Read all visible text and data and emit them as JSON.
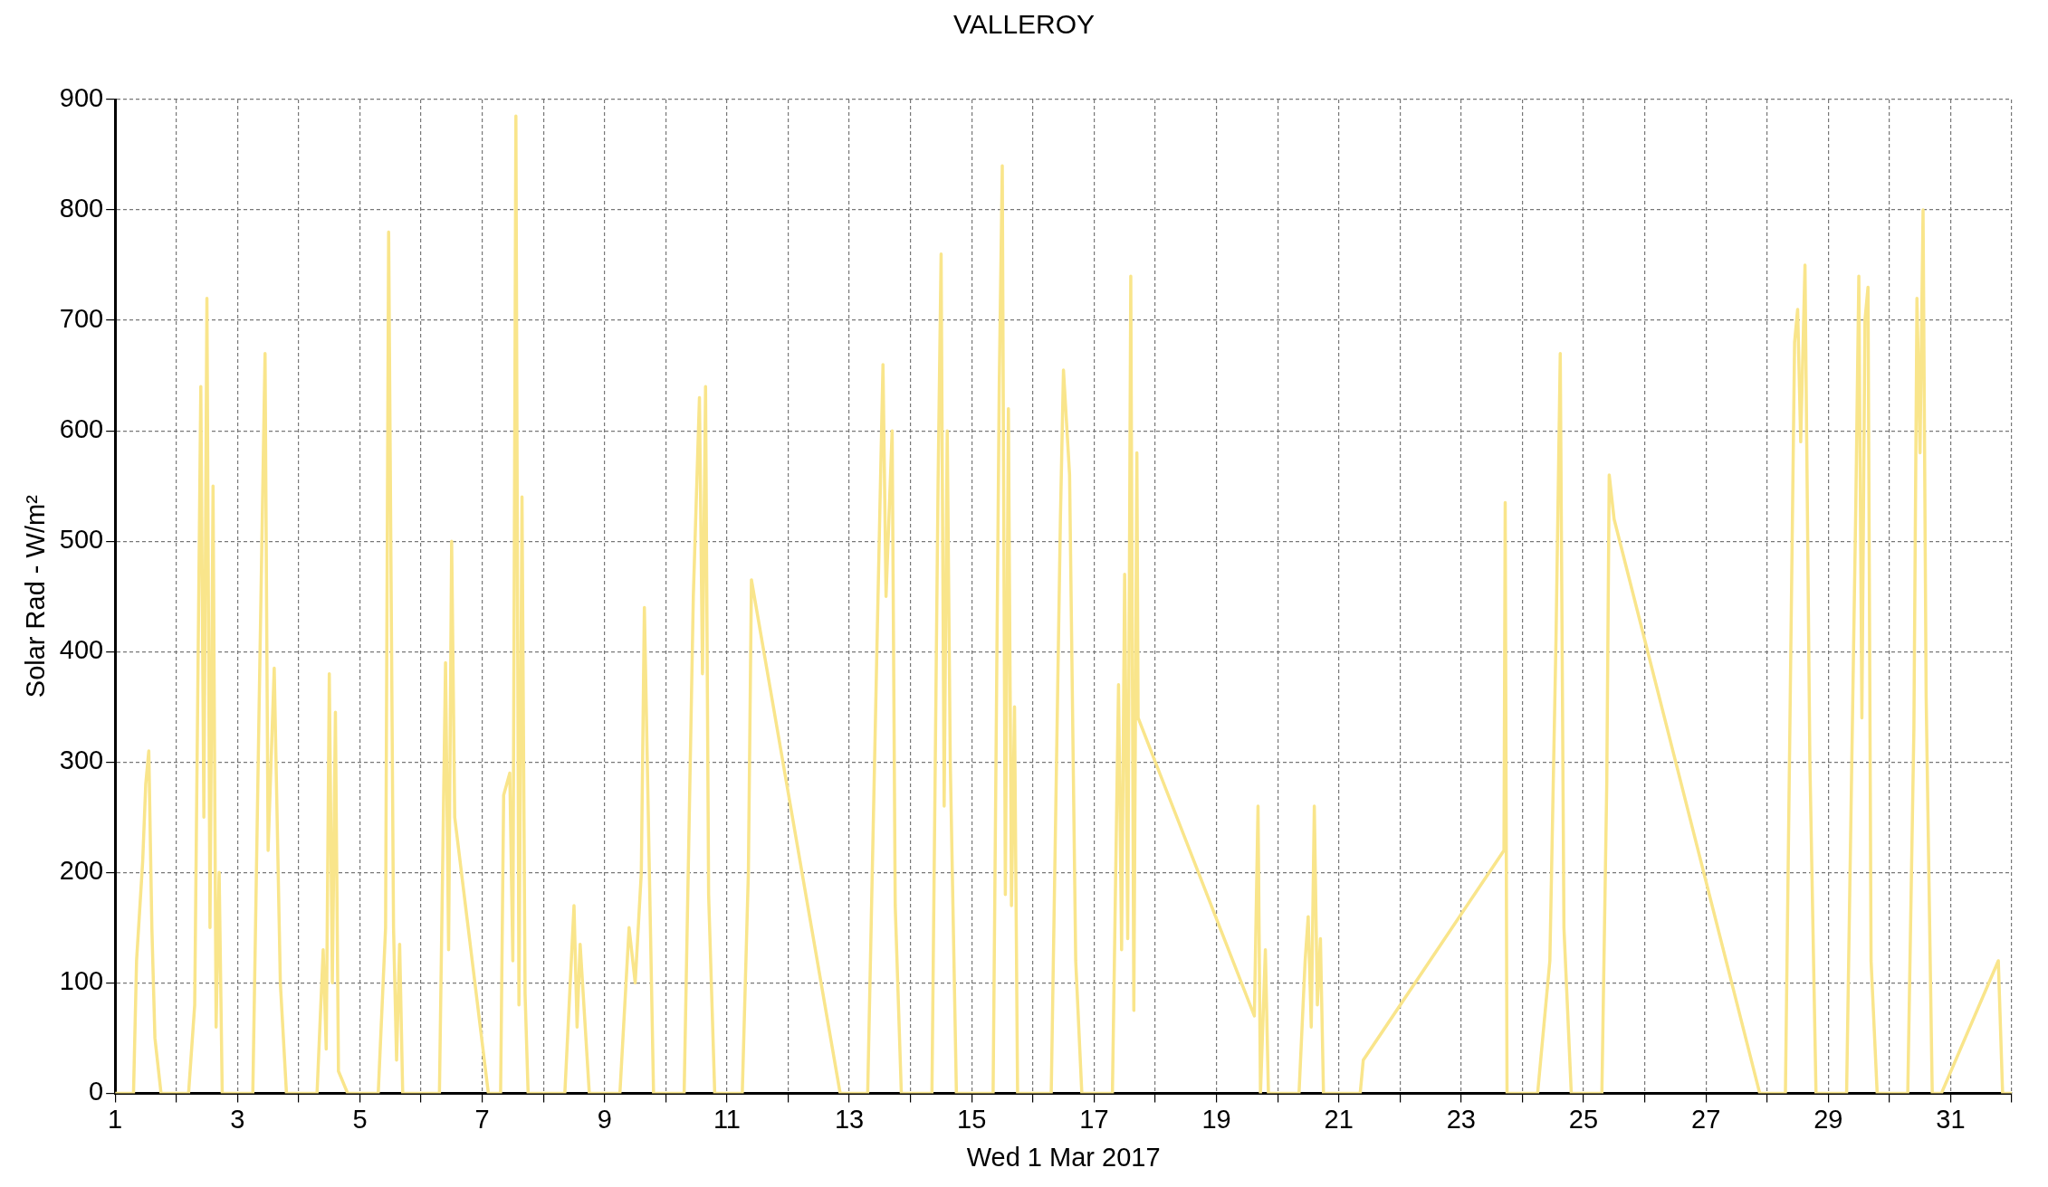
{
  "chart_data": {
    "type": "line",
    "title": "VALLEROY",
    "xlabel": "Wed 1 Mar 2017",
    "ylabel": "Solar Rad - W/m²",
    "color": "#f9e58b",
    "marker": "none",
    "grid": true,
    "xlim": [
      1,
      32
    ],
    "xticks": [
      1,
      {
        "value": 2,
        "label": null
      },
      3,
      {
        "value": 4,
        "label": null
      },
      5,
      {
        "value": 6,
        "label": null
      },
      7,
      {
        "value": 8,
        "label": null
      },
      9,
      {
        "value": 10,
        "label": null
      },
      11,
      {
        "value": 12,
        "label": null
      },
      13,
      {
        "value": 14,
        "label": null
      },
      15,
      {
        "value": 16,
        "label": null
      },
      17,
      {
        "value": 18,
        "label": null
      },
      19,
      {
        "value": 20,
        "label": null
      },
      21,
      {
        "value": 22,
        "label": null
      },
      23,
      {
        "value": 24,
        "label": null
      },
      25,
      {
        "value": 26,
        "label": null
      },
      27,
      {
        "value": 28,
        "label": null
      },
      29,
      {
        "value": 30,
        "label": null
      },
      31,
      {
        "value": 32,
        "label": null
      }
    ],
    "ylim": [
      0,
      900
    ],
    "yticks": [
      0,
      100,
      200,
      300,
      400,
      500,
      600,
      700,
      800,
      900
    ],
    "x": [
      1,
      1.3,
      1.35,
      1.45,
      1.5,
      1.55,
      1.6,
      1.65,
      1.75,
      2.2,
      2.3,
      2.4,
      2.45,
      2.5,
      2.55,
      2.6,
      2.65,
      2.7,
      2.75,
      3.25,
      3.35,
      3.45,
      3.5,
      3.6,
      3.7,
      3.8,
      4.3,
      4.4,
      4.45,
      4.5,
      4.55,
      4.6,
      4.65,
      4.8,
      5.3,
      5.42,
      5.47,
      5.55,
      5.6,
      5.65,
      5.7,
      6.3,
      6.4,
      6.45,
      6.5,
      6.55,
      7.1,
      7.3,
      7.35,
      7.45,
      7.5,
      7.55,
      7.6,
      7.65,
      7.7,
      7.75,
      8.35,
      8.5,
      8.55,
      8.6,
      8.75,
      9.25,
      9.4,
      9.5,
      9.6,
      9.65,
      9.8,
      10.3,
      10.45,
      10.55,
      10.6,
      10.65,
      10.7,
      10.8,
      11.25,
      11.35,
      11.4,
      12.85,
      13.3,
      13.45,
      13.55,
      13.6,
      13.7,
      13.75,
      13.85,
      14.35,
      14.45,
      14.5,
      14.55,
      14.6,
      14.65,
      14.75,
      15.35,
      15.45,
      15.5,
      15.55,
      15.6,
      15.65,
      15.7,
      15.75,
      16.3,
      16.45,
      16.5,
      16.6,
      16.7,
      16.8,
      17.3,
      17.4,
      17.45,
      17.5,
      17.55,
      17.6,
      17.65,
      17.7,
      17.72,
      19.62,
      19.68,
      19.72,
      19.8,
      19.85,
      20.35,
      20.45,
      20.5,
      20.55,
      20.6,
      20.65,
      20.7,
      20.75,
      21.35,
      21.4,
      23.7,
      23.72,
      23.75,
      24.25,
      24.45,
      24.55,
      24.62,
      24.68,
      24.8,
      25.3,
      25.38,
      25.42,
      25.5,
      27.88,
      28.3,
      28.45,
      28.5,
      28.55,
      28.62,
      28.7,
      28.8,
      29.3,
      29.45,
      29.5,
      29.55,
      29.6,
      29.65,
      29.7,
      29.8,
      30.3,
      30.4,
      30.45,
      30.5,
      30.55,
      30.6,
      30.7,
      30.85,
      31.78,
      31.85,
      32
    ],
    "values": [
      0,
      0,
      120,
      210,
      280,
      310,
      150,
      50,
      0,
      0,
      80,
      640,
      250,
      720,
      150,
      550,
      60,
      200,
      0,
      0,
      340,
      670,
      220,
      385,
      100,
      0,
      0,
      130,
      40,
      380,
      100,
      345,
      20,
      0,
      0,
      150,
      780,
      150,
      30,
      135,
      0,
      0,
      390,
      130,
      500,
      250,
      0,
      0,
      270,
      290,
      120,
      885,
      80,
      540,
      90,
      0,
      0,
      170,
      60,
      135,
      0,
      0,
      150,
      100,
      200,
      440,
      0,
      0,
      450,
      630,
      380,
      640,
      180,
      0,
      0,
      200,
      465,
      0,
      0,
      400,
      660,
      450,
      600,
      170,
      0,
      0,
      550,
      760,
      260,
      600,
      300,
      0,
      0,
      640,
      840,
      180,
      620,
      170,
      350,
      0,
      0,
      520,
      655,
      560,
      120,
      0,
      0,
      370,
      130,
      470,
      140,
      740,
      75,
      580,
      340,
      70,
      260,
      0,
      130,
      0,
      0,
      120,
      160,
      60,
      260,
      80,
      140,
      0,
      0,
      30,
      220,
      535,
      0,
      0,
      120,
      410,
      670,
      150,
      0,
      0,
      280,
      560,
      520,
      0,
      0,
      680,
      710,
      590,
      750,
      300,
      0,
      0,
      530,
      740,
      340,
      700,
      730,
      120,
      0,
      0,
      330,
      720,
      580,
      800,
      360,
      0,
      0,
      120,
      0,
      0
    ]
  }
}
